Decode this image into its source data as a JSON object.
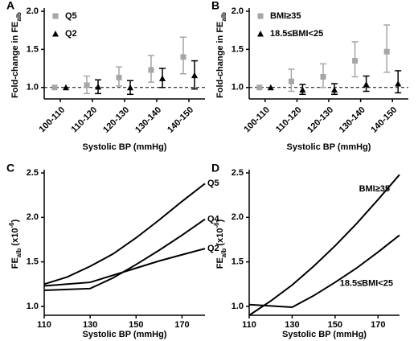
{
  "chart_data": [
    {
      "type": "errorbar",
      "panel": "A",
      "ylabel": {
        "text": "Fold-change in FE",
        "sub": "alb"
      },
      "xlabel": "Systolic BP (mmHg)",
      "categories": [
        "100-110",
        "110-120",
        "120-130",
        "130-140",
        "140-150"
      ],
      "ylim": [
        0.85,
        2.0
      ],
      "yticks": [
        {
          "value": 1,
          "label": "1.0"
        },
        1.5,
        {
          "value": 2,
          "label": "2.0"
        }
      ],
      "refline": 1,
      "series": [
        {
          "name": "Q5",
          "color": "#a6a6a6",
          "marker": "square",
          "values": [
            1.0,
            1.03,
            1.13,
            1.23,
            1.4
          ],
          "lower": [
            null,
            0.92,
            1.02,
            1.07,
            1.18
          ],
          "upper": [
            null,
            1.15,
            1.27,
            1.42,
            1.66
          ]
        },
        {
          "name": "Q2",
          "color": "#000000",
          "marker": "triangle",
          "values": [
            1.0,
            1.01,
            1.0,
            1.12,
            1.16
          ],
          "lower": [
            null,
            0.92,
            0.91,
            1.0,
            0.98
          ],
          "upper": [
            null,
            1.1,
            1.09,
            1.25,
            1.35
          ]
        }
      ]
    },
    {
      "type": "errorbar",
      "panel": "B",
      "ylabel": {
        "text": "Fold-change in FE",
        "sub": "alb"
      },
      "xlabel": "Systolic BP (mmHg)",
      "categories": [
        "100-110",
        "110-120",
        "120-130",
        "130-140",
        "140-150"
      ],
      "ylim": [
        0.85,
        2.0
      ],
      "yticks": [
        {
          "value": 1,
          "label": "1.0"
        },
        1.5,
        {
          "value": 2,
          "label": "2.0"
        }
      ],
      "refline": 1,
      "series": [
        {
          "name": "BMI≥35",
          "color": "#a6a6a6",
          "marker": "square",
          "values": [
            1.0,
            1.08,
            1.14,
            1.35,
            1.47
          ],
          "lower": [
            null,
            0.95,
            1.0,
            1.14,
            1.2
          ],
          "upper": [
            null,
            1.24,
            1.31,
            1.6,
            1.82
          ]
        },
        {
          "name": "18.5≤BMI<25",
          "color": "#000000",
          "marker": "triangle",
          "values": [
            1.0,
            0.97,
            0.97,
            1.04,
            1.05
          ],
          "lower": [
            null,
            0.91,
            0.91,
            0.95,
            0.93
          ],
          "upper": [
            null,
            1.04,
            1.05,
            1.15,
            1.22
          ]
        }
      ]
    },
    {
      "type": "line",
      "panel": "C",
      "ylabel": {
        "text": "FE",
        "sub": "alb",
        "rest": " (x10",
        "sup": "-6",
        "end": ")"
      },
      "xlabel": "Systolic BP (mmHg)",
      "x": [
        110,
        120,
        130,
        140,
        150,
        160,
        170,
        180
      ],
      "xlim": [
        110,
        180
      ],
      "xticks": [
        110,
        130,
        150,
        170
      ],
      "ylim": [
        0.9,
        2.5
      ],
      "yticks": [
        {
          "value": 1,
          "label": "1.0"
        },
        1.5,
        {
          "value": 2,
          "label": "2.0"
        },
        2.5
      ],
      "series": [
        {
          "name": "Q5",
          "color": "#000000",
          "values": [
            1.25,
            1.33,
            1.45,
            1.59,
            1.77,
            1.97,
            2.18,
            2.38
          ]
        },
        {
          "name": "Q4",
          "color": "#000000",
          "values": [
            1.18,
            1.19,
            1.2,
            1.32,
            1.47,
            1.63,
            1.8,
            1.98
          ]
        },
        {
          "name": "Q2",
          "color": "#000000",
          "values": [
            1.23,
            1.25,
            1.27,
            1.35,
            1.43,
            1.51,
            1.58,
            1.65
          ]
        }
      ]
    },
    {
      "type": "line",
      "panel": "D",
      "ylabel": {
        "text": "FE",
        "sub": "alb",
        "rest": " (x10",
        "sup": "-6",
        "end": ")"
      },
      "xlabel": "Systolic BP (mmHg)",
      "x": [
        110,
        120,
        130,
        140,
        150,
        160,
        170,
        180
      ],
      "xlim": [
        110,
        180
      ],
      "xticks": [
        110,
        130,
        150,
        170
      ],
      "ylim": [
        0.9,
        2.5
      ],
      "yticks": [
        {
          "value": 1,
          "label": "1.0"
        },
        1.5,
        {
          "value": 2,
          "label": "2.0"
        },
        2.5
      ],
      "series": [
        {
          "name": "BMI≥35",
          "color": "#000000",
          "values": [
            0.9,
            1.06,
            1.24,
            1.45,
            1.68,
            1.93,
            2.2,
            2.48
          ]
        },
        {
          "name": "18.5≤BMI<25",
          "color": "#000000",
          "values": [
            1.02,
            1.005,
            0.99,
            1.12,
            1.27,
            1.43,
            1.61,
            1.8
          ]
        }
      ]
    }
  ]
}
